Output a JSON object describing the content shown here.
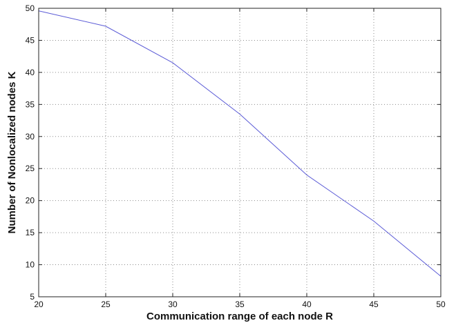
{
  "chart_data": {
    "type": "line",
    "title": "",
    "xlabel": "Communication range of each node R",
    "ylabel": "Number of Nonlocalized nodes K",
    "xlim": [
      20,
      50
    ],
    "ylim": [
      5,
      50
    ],
    "xticks": [
      20,
      25,
      30,
      35,
      40,
      45,
      50
    ],
    "yticks": [
      5,
      10,
      15,
      20,
      25,
      30,
      35,
      40,
      45,
      50
    ],
    "grid": true,
    "series": [
      {
        "color": "#5a5ad6",
        "x": [
          20,
          25,
          30,
          35,
          40,
          45,
          50
        ],
        "y": [
          49.6,
          47.2,
          41.5,
          33.5,
          24.0,
          16.8,
          8.2
        ]
      }
    ]
  }
}
